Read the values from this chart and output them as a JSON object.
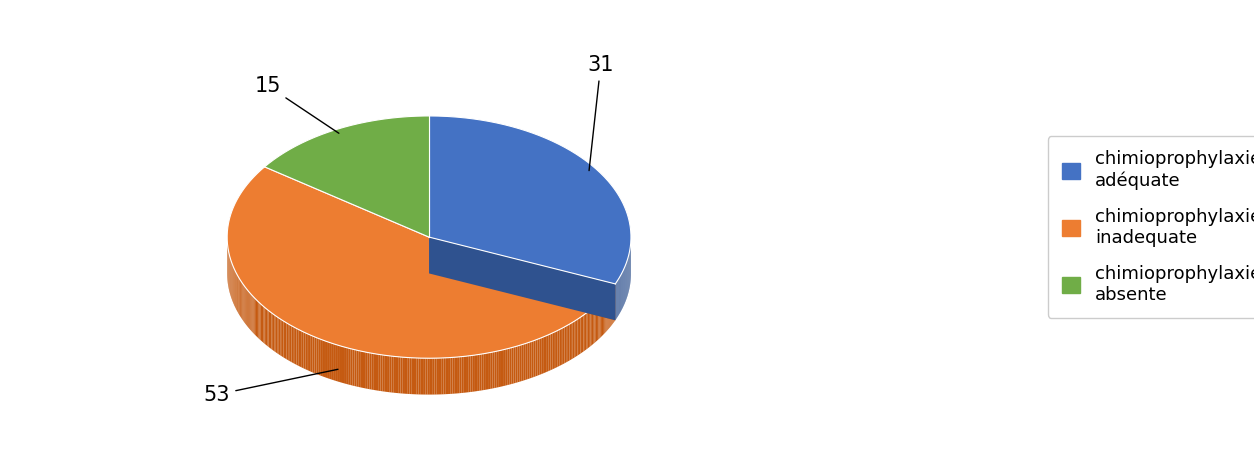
{
  "values": [
    31,
    53,
    15
  ],
  "labels": [
    "31",
    "53",
    "15"
  ],
  "colors": [
    "#4472C4",
    "#ED7D31",
    "#70AD47"
  ],
  "dark_colors": [
    "#2F528F",
    "#C55A11",
    "#375623"
  ],
  "legend_labels": [
    "chimioprophylaxie\nadéquate",
    "chimioprophylaxie\ninadequate",
    "chimioprophylaxie\nabsente"
  ],
  "startangle": 90,
  "background_color": "#ffffff",
  "label_fontsize": 15,
  "legend_fontsize": 13
}
